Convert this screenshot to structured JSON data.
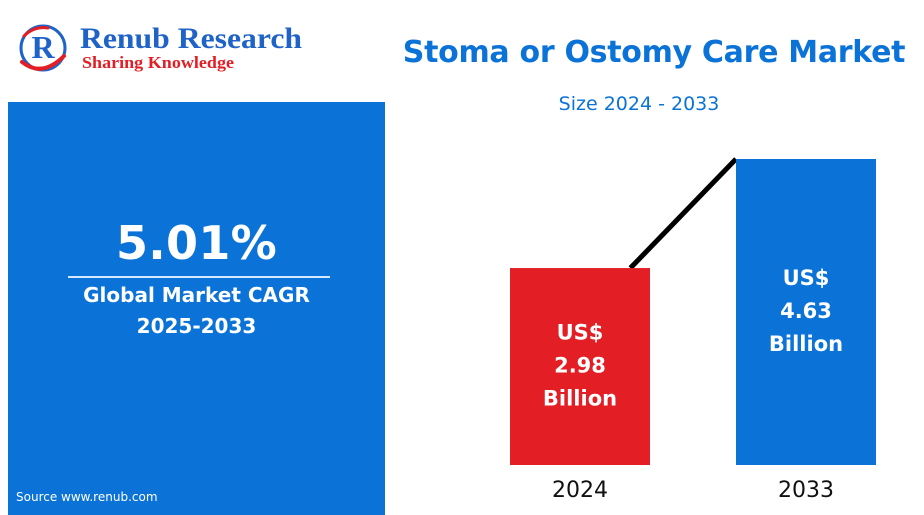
{
  "brand": {
    "name": "Renub Research",
    "tagline": "Sharing Knowledge",
    "logo_letter": "R",
    "primary_color": "#1f63c8",
    "accent_color": "#e31e24"
  },
  "title": "Stoma or Ostomy Care Market",
  "subtitle": "Size 2024 - 2033",
  "cagr": {
    "value": "5.01%",
    "label": "Global Market CAGR",
    "years": "2025-2033",
    "panel_color": "#0b73d8"
  },
  "source": "Source  www.renub.com",
  "chart_data": {
    "type": "bar",
    "categories": [
      "2024",
      "2033"
    ],
    "values": [
      2.98,
      4.63
    ],
    "unit": "US$ Billion",
    "data_labels": [
      [
        "US$",
        "2.98",
        "Billion"
      ],
      [
        "US$",
        "4.63",
        "Billion"
      ]
    ],
    "colors": [
      "#e31e24",
      "#0b73d8"
    ],
    "trend_line": true,
    "grid": false,
    "legend": "none"
  }
}
